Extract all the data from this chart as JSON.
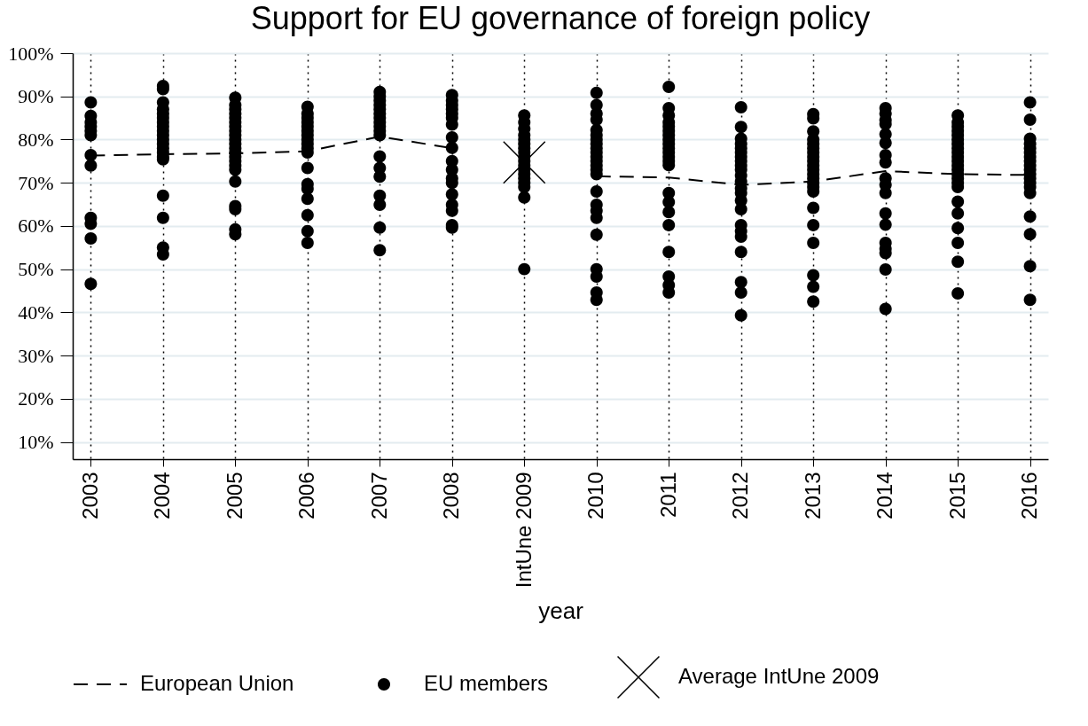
{
  "chart_data": {
    "type": "scatter",
    "title": "Support for EU governance of foreign policy",
    "xlabel": "year",
    "xlim": [
      2002.75,
      2016.25
    ],
    "xticks": [
      2003,
      2004,
      2005,
      2006,
      2007,
      2008,
      {
        "value": 2009,
        "label": "IntUne 2009"
      },
      2010,
      2011,
      2012,
      2013,
      2014,
      2015,
      2016
    ],
    "x": [
      2003,
      2004,
      2005,
      2006,
      2007,
      2008,
      2009,
      2010,
      2011,
      2012,
      2013,
      2014,
      2015,
      2016
    ],
    "ylim": [
      6,
      100
    ],
    "yticks": [
      {
        "value": 10,
        "label": "10%"
      },
      {
        "value": 20,
        "label": "20%"
      },
      {
        "value": 30,
        "label": "30%"
      },
      {
        "value": 40,
        "label": "40%"
      },
      {
        "value": 50,
        "label": "50%"
      },
      {
        "value": 60,
        "label": "60%"
      },
      {
        "value": 70,
        "label": "70%"
      },
      {
        "value": 80,
        "label": "80%"
      },
      {
        "value": 90,
        "label": "90%"
      },
      {
        "value": 100,
        "label": "100%"
      }
    ],
    "grid": true,
    "legend": "bottom",
    "series": [
      {
        "name": "European Union",
        "type": "line",
        "color": "#000000",
        "line_style": "dashed",
        "marker": "none",
        "values": [
          76.3,
          76.6,
          76.8,
          77.3,
          80.7,
          78,
          null,
          71.5,
          71.2,
          69.5,
          70.3,
          72.7,
          72,
          71.8
        ]
      },
      {
        "name": "EU members",
        "color": "#000000",
        "marker": "circle",
        "x": [
          2003,
          2003,
          2003,
          2003,
          2003,
          2003,
          2003,
          2003,
          2003,
          2003,
          2003,
          2003,
          2004,
          2004,
          2004,
          2004,
          2004,
          2004,
          2004,
          2004,
          2004,
          2004,
          2004,
          2004,
          2004,
          2004,
          2004,
          2004,
          2004,
          2004,
          2004,
          2004,
          2005,
          2005,
          2005,
          2005,
          2005,
          2005,
          2005,
          2005,
          2005,
          2005,
          2005,
          2005,
          2005,
          2005,
          2005,
          2005,
          2005,
          2005,
          2005,
          2005,
          2005,
          2005,
          2006,
          2006,
          2006,
          2006,
          2006,
          2006,
          2006,
          2006,
          2006,
          2006,
          2006,
          2006,
          2006,
          2006,
          2006,
          2006,
          2006,
          2006,
          2007,
          2007,
          2007,
          2007,
          2007,
          2007,
          2007,
          2007,
          2007,
          2007,
          2007,
          2007,
          2007,
          2007,
          2007,
          2007,
          2007,
          2007,
          2008,
          2008,
          2008,
          2008,
          2008,
          2008,
          2008,
          2008,
          2008,
          2008,
          2008,
          2008,
          2008,
          2008,
          2008,
          2008,
          2008,
          2008,
          2009,
          2009,
          2009,
          2009,
          2009,
          2009,
          2009,
          2009,
          2009,
          2009,
          2009,
          2009,
          2009,
          2009,
          2009,
          2009,
          2009,
          2009,
          2010,
          2010,
          2010,
          2010,
          2010,
          2010,
          2010,
          2010,
          2010,
          2010,
          2010,
          2010,
          2010,
          2010,
          2010,
          2010,
          2010,
          2010,
          2010,
          2010,
          2010,
          2010,
          2010,
          2010,
          2011,
          2011,
          2011,
          2011,
          2011,
          2011,
          2011,
          2011,
          2011,
          2011,
          2011,
          2011,
          2011,
          2011,
          2011,
          2011,
          2011,
          2011,
          2011,
          2011,
          2011,
          2011,
          2012,
          2012,
          2012,
          2012,
          2012,
          2012,
          2012,
          2012,
          2012,
          2012,
          2012,
          2012,
          2012,
          2012,
          2012,
          2012,
          2012,
          2012,
          2012,
          2012,
          2012,
          2012,
          2012,
          2013,
          2013,
          2013,
          2013,
          2013,
          2013,
          2013,
          2013,
          2013,
          2013,
          2013,
          2013,
          2013,
          2013,
          2013,
          2013,
          2013,
          2013,
          2013,
          2013,
          2013,
          2013,
          2014,
          2014,
          2014,
          2014,
          2014,
          2014,
          2014,
          2014,
          2014,
          2014,
          2014,
          2014,
          2014,
          2014,
          2014,
          2014,
          2014,
          2014,
          2015,
          2015,
          2015,
          2015,
          2015,
          2015,
          2015,
          2015,
          2015,
          2015,
          2015,
          2015,
          2015,
          2015,
          2015,
          2015,
          2015,
          2015,
          2015,
          2015,
          2015,
          2015,
          2015,
          2016,
          2016,
          2016,
          2016,
          2016,
          2016,
          2016,
          2016,
          2016,
          2016,
          2016,
          2016,
          2016,
          2016,
          2016,
          2016,
          2016,
          2016,
          2016
        ],
        "values": [
          88.6,
          85.5,
          84,
          83,
          82,
          81,
          76.4,
          74,
          61.9,
          60.5,
          57.1,
          46.6,
          92.4,
          91.7,
          88.6,
          87,
          86,
          85,
          84,
          83,
          82,
          81,
          80,
          79,
          78,
          77,
          76,
          75.4,
          67,
          61.9,
          55,
          53.4,
          89.7,
          88,
          87,
          86,
          85,
          84,
          83,
          82,
          81,
          80,
          79,
          78,
          77,
          76,
          75,
          74,
          73,
          70.3,
          64.6,
          63.9,
          59.2,
          58.1,
          87.6,
          86,
          85,
          84,
          83,
          82,
          81,
          80,
          79,
          78,
          77,
          73.4,
          69.7,
          68.6,
          66.3,
          62.5,
          58.8,
          56.1,
          91,
          90,
          89,
          88,
          87,
          86,
          85,
          84,
          83,
          82,
          81,
          76.1,
          73.4,
          71.4,
          67,
          64.9,
          59.6,
          54.4,
          90.3,
          89,
          88,
          87,
          86,
          85,
          83.5,
          80.5,
          78.1,
          75,
          73,
          71,
          70,
          67.3,
          64.9,
          63.5,
          60.2,
          59.6,
          85.6,
          84,
          82.5,
          81,
          80,
          79,
          78,
          77,
          76,
          75,
          74,
          73,
          72,
          71,
          70,
          69,
          66.6,
          50,
          90.8,
          88,
          86,
          84.6,
          82.2,
          81,
          80,
          79,
          78,
          77,
          76,
          75,
          74,
          73,
          72,
          68,
          64.9,
          63.5,
          61.9,
          58,
          50,
          48.3,
          44.6,
          42.9,
          92.2,
          87.3,
          85.6,
          84,
          83,
          82,
          81,
          80,
          79,
          78,
          77,
          76,
          75,
          74.1,
          67.6,
          65.5,
          63.2,
          60.2,
          54,
          48.3,
          46.3,
          44.6,
          87.5,
          82.9,
          80.2,
          79,
          78,
          77,
          76,
          75,
          74,
          73,
          71.7,
          70.3,
          68.7,
          67.6,
          65.9,
          63.9,
          60.2,
          58.8,
          57.5,
          54,
          47,
          44.6,
          39.3,
          85.9,
          84.9,
          81.9,
          80,
          79,
          78,
          77,
          76,
          75,
          74,
          73,
          72,
          71,
          70,
          69,
          68,
          64.2,
          60.2,
          56.1,
          48.6,
          45.9,
          42.5,
          87.3,
          86,
          84.5,
          83.6,
          81.2,
          79.2,
          76.4,
          74.7,
          71,
          69.5,
          67.6,
          62.9,
          60.3,
          56.1,
          54.7,
          53.7,
          49.9,
          40.8,
          85.6,
          84,
          83,
          82,
          81,
          80,
          79,
          78,
          77,
          76,
          75,
          74,
          73,
          72,
          71,
          70,
          69,
          65.6,
          62.9,
          59.5,
          56.1,
          51.7,
          44.4,
          88.6,
          84.6,
          80.2,
          79,
          78,
          77,
          76,
          75,
          74,
          73,
          72,
          71,
          70,
          69,
          67.6,
          62.2,
          58.1,
          50.7,
          42.9
        ]
      },
      {
        "name": "Average IntUne 2009",
        "color": "#000000",
        "marker": "cross",
        "x": [
          2009
        ],
        "values": [
          74.7
        ]
      }
    ]
  }
}
